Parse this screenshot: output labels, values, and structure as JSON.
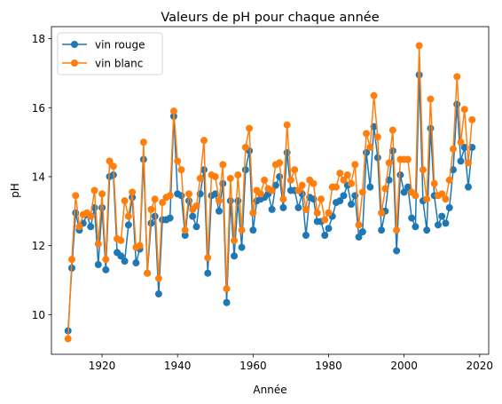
{
  "chart_data": {
    "type": "line",
    "title": "Valeurs de pH pour chaque année",
    "xlabel": "Année",
    "ylabel": "pH",
    "xlim": [
      1906.6,
      2022.4
    ],
    "ylim": [
      8.85,
      18.35
    ],
    "xticks": [
      1920,
      1940,
      1960,
      1980,
      2000,
      2020
    ],
    "yticks": [
      10,
      12,
      14,
      16,
      18
    ],
    "grid": false,
    "legend_position": "top-left",
    "x": [
      1911,
      1912,
      1913,
      1914,
      1915,
      1916,
      1917,
      1918,
      1919,
      1920,
      1921,
      1922,
      1923,
      1924,
      1925,
      1926,
      1927,
      1928,
      1929,
      1930,
      1931,
      1932,
      1933,
      1934,
      1935,
      1936,
      1937,
      1938,
      1939,
      1940,
      1941,
      1942,
      1943,
      1944,
      1945,
      1946,
      1947,
      1948,
      1949,
      1950,
      1951,
      1952,
      1953,
      1954,
      1955,
      1956,
      1957,
      1958,
      1959,
      1960,
      1961,
      1962,
      1963,
      1964,
      1965,
      1966,
      1967,
      1968,
      1969,
      1970,
      1971,
      1972,
      1973,
      1974,
      1975,
      1976,
      1977,
      1978,
      1979,
      1980,
      1981,
      1982,
      1983,
      1984,
      1985,
      1986,
      1987,
      1988,
      1989,
      1990,
      1991,
      1992,
      1993,
      1994,
      1995,
      1996,
      1997,
      1998,
      1999,
      2000,
      2001,
      2002,
      2003,
      2004,
      2005,
      2006,
      2007,
      2008,
      2009,
      2010,
      2011,
      2012,
      2013,
      2014,
      2015,
      2016,
      2017,
      2018
    ],
    "series": [
      {
        "name": "vin rouge",
        "color": "#1f77b4",
        "values": [
          9.53,
          11.35,
          12.95,
          12.45,
          12.65,
          12.9,
          12.55,
          13.1,
          11.45,
          13.1,
          11.3,
          14.0,
          14.05,
          11.8,
          11.7,
          11.55,
          12.6,
          13.4,
          11.5,
          11.9,
          14.5,
          11.2,
          12.65,
          12.85,
          10.6,
          12.75,
          12.75,
          12.8,
          15.75,
          13.5,
          13.45,
          12.3,
          13.3,
          12.85,
          12.55,
          13.5,
          14.2,
          11.2,
          13.45,
          13.5,
          13.0,
          13.8,
          10.35,
          13.3,
          11.7,
          13.3,
          11.95,
          14.2,
          14.75,
          12.45,
          13.3,
          13.35,
          13.4,
          13.5,
          13.05,
          13.75,
          14.0,
          13.1,
          14.7,
          13.6,
          13.6,
          13.1,
          13.5,
          12.3,
          13.4,
          13.35,
          12.7,
          12.7,
          12.3,
          12.5,
          12.85,
          13.25,
          13.3,
          13.45,
          13.75,
          13.2,
          13.45,
          12.25,
          12.4,
          14.7,
          13.7,
          15.45,
          14.55,
          12.45,
          13.0,
          13.9,
          14.75,
          11.85,
          14.05,
          13.55,
          13.7,
          12.8,
          12.55,
          16.95,
          13.3,
          12.45,
          15.4,
          13.45,
          12.6,
          12.85,
          12.65,
          13.1,
          14.2,
          16.1,
          14.45,
          14.85,
          13.7,
          14.85
        ]
      },
      {
        "name": "vin blanc",
        "color": "#ff7f0e",
        "values": [
          9.3,
          11.6,
          13.45,
          12.55,
          12.9,
          12.95,
          12.85,
          13.6,
          12.05,
          13.5,
          11.6,
          14.45,
          14.3,
          12.2,
          12.15,
          13.3,
          12.85,
          13.55,
          11.95,
          12.0,
          15.0,
          11.2,
          13.05,
          13.35,
          11.05,
          13.25,
          13.4,
          13.45,
          15.9,
          14.45,
          14.2,
          12.45,
          13.5,
          13.05,
          13.15,
          13.95,
          15.05,
          11.65,
          14.05,
          14.0,
          13.3,
          14.35,
          10.75,
          13.95,
          12.15,
          14.05,
          12.45,
          14.85,
          15.4,
          12.95,
          13.6,
          13.5,
          13.9,
          13.65,
          13.6,
          14.35,
          14.4,
          13.35,
          15.5,
          13.9,
          14.2,
          13.6,
          13.75,
          13.05,
          13.9,
          13.8,
          12.95,
          13.35,
          12.75,
          12.95,
          13.7,
          13.7,
          14.1,
          13.9,
          14.05,
          13.8,
          14.35,
          12.6,
          13.55,
          15.25,
          14.85,
          16.35,
          15.15,
          12.95,
          13.65,
          14.4,
          15.35,
          12.45,
          14.5,
          14.5,
          14.5,
          13.55,
          13.45,
          17.8,
          14.2,
          13.35,
          16.25,
          13.8,
          13.45,
          13.5,
          13.35,
          13.9,
          14.8,
          16.9,
          15.0,
          15.95,
          14.4,
          15.65
        ]
      }
    ]
  }
}
